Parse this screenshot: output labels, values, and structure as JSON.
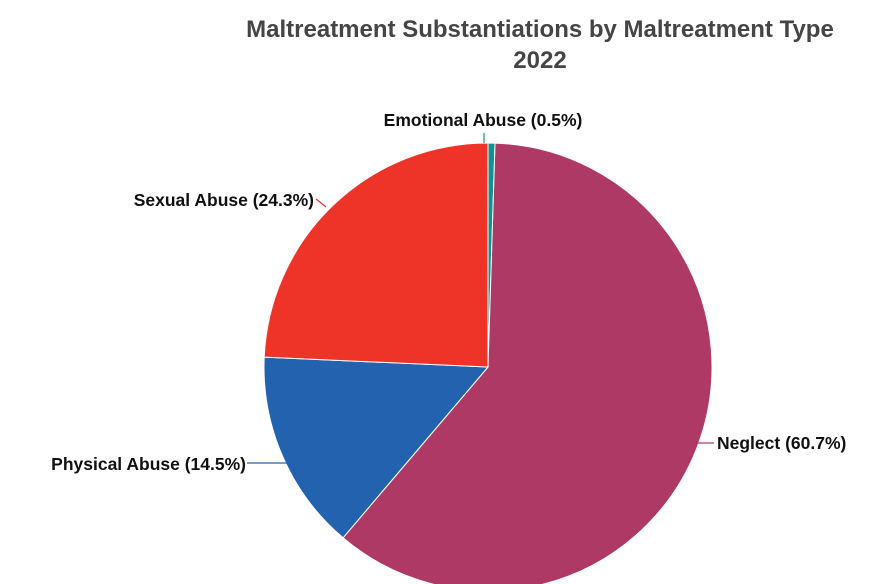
{
  "chart_data": {
    "type": "pie",
    "title": "Maltreatment Substantiations by Maltreatment Type",
    "subtitle": "2022",
    "slices": [
      {
        "name": "Emotional Abuse",
        "value": 0.5,
        "label": "Emotional Abuse (0.5%)",
        "color": "#13918f"
      },
      {
        "name": "Neglect",
        "value": 60.7,
        "label": "Neglect (60.7%)",
        "color": "#ad3964"
      },
      {
        "name": "Physical Abuse",
        "value": 14.5,
        "label": "Physical Abuse (14.5%)",
        "color": "#2262ae"
      },
      {
        "name": "Sexual Abuse",
        "value": 24.3,
        "label": "Sexual Abuse (24.3%)",
        "color": "#ee3329"
      }
    ]
  }
}
